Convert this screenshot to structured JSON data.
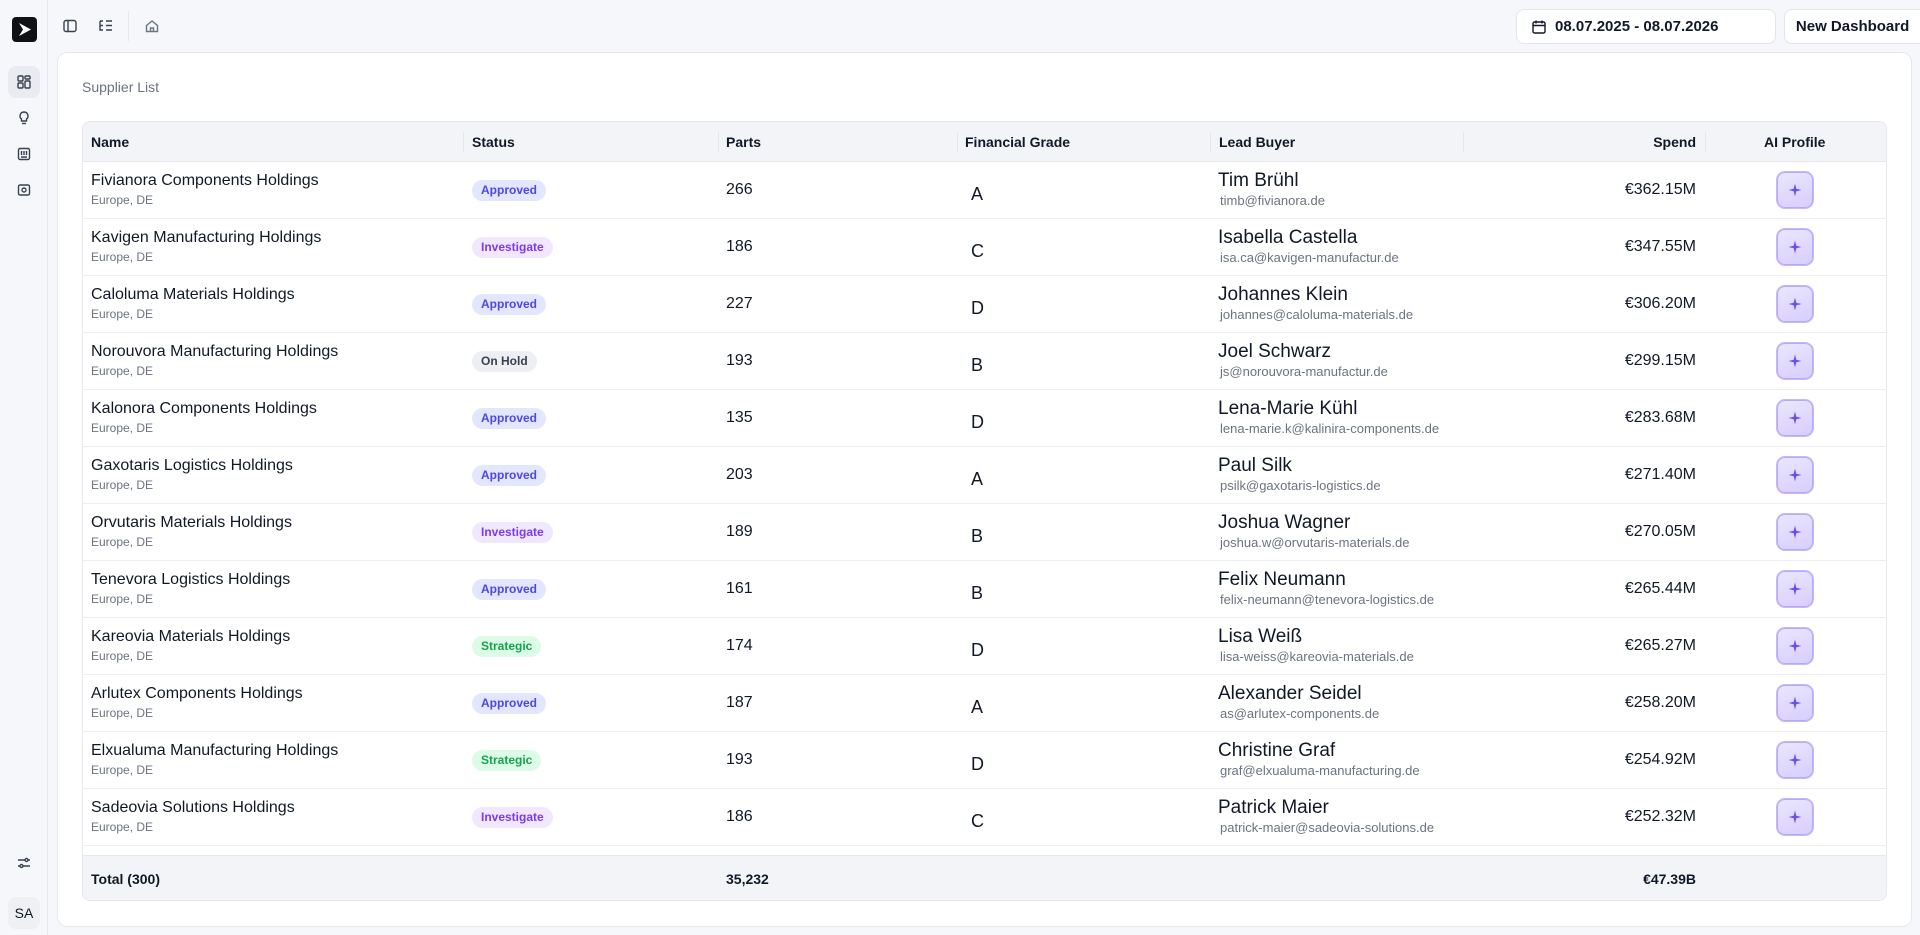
{
  "app": {
    "avatar_initials": "SA",
    "colors": {
      "accent": "#6d4cf3",
      "approved_bg": "#e3e6ff",
      "approved_fg": "#4f46e5",
      "investigate_bg": "#f1e8ff",
      "investigate_fg": "#7c3aed",
      "onhold_bg": "#eeeff2",
      "onhold_fg": "#374151",
      "strategic_bg": "#dcfce7",
      "strategic_fg": "#16a34a"
    }
  },
  "sidebar": {
    "items": [
      {
        "name": "dashboard",
        "icon": "layout-grid-icon",
        "active": true
      },
      {
        "name": "insights",
        "icon": "lightbulb-icon",
        "active": false
      },
      {
        "name": "catalog",
        "icon": "panel-icon",
        "active": false
      },
      {
        "name": "suppliers",
        "icon": "scan-icon",
        "active": false
      }
    ],
    "bottom_icon": "sliders-icon"
  },
  "header": {
    "date_range": "08.07.2025 - 08.07.2026",
    "new_dashboard_label": "New Dashboard"
  },
  "panel": {
    "title": "Supplier List"
  },
  "table": {
    "columns": {
      "name": "Name",
      "status": "Status",
      "parts": "Parts",
      "financial_grade": "Financial Grade",
      "lead_buyer": "Lead Buyer",
      "spend": "Spend",
      "ai_profile": "AI Profile"
    },
    "rows": [
      {
        "name": "Fivianora Components Holdings",
        "region": "Europe, DE",
        "status": "Approved",
        "status_type": "approved",
        "parts": "266",
        "grade": "A",
        "buyer": "Tim Brühl",
        "email": "timb@fivianora.de",
        "spend": "€362.15M"
      },
      {
        "name": "Kavigen Manufacturing Holdings",
        "region": "Europe, DE",
        "status": "Investigate",
        "status_type": "investigate",
        "parts": "186",
        "grade": "C",
        "buyer": "Isabella Castella",
        "email": "isa.ca@kavigen-manufactur.de",
        "spend": "€347.55M"
      },
      {
        "name": "Caloluma Materials Holdings",
        "region": "Europe, DE",
        "status": "Approved",
        "status_type": "approved",
        "parts": "227",
        "grade": "D",
        "buyer": "Johannes Klein",
        "email": "johannes@caloluma-materials.de",
        "spend": "€306.20M"
      },
      {
        "name": "Norouvora Manufacturing Holdings",
        "region": "Europe, DE",
        "status": "On Hold",
        "status_type": "onhold",
        "parts": "193",
        "grade": "B",
        "buyer": "Joel Schwarz",
        "email": "js@norouvora-manufactur.de",
        "spend": "€299.15M"
      },
      {
        "name": "Kalonora Components Holdings",
        "region": "Europe, DE",
        "status": "Approved",
        "status_type": "approved",
        "parts": "135",
        "grade": "D",
        "buyer": "Lena-Marie Kühl",
        "email": "lena-marie.k@kalinira-components.de",
        "spend": "€283.68M"
      },
      {
        "name": "Gaxotaris Logistics Holdings",
        "region": "Europe, DE",
        "status": "Approved",
        "status_type": "approved",
        "parts": "203",
        "grade": "A",
        "buyer": "Paul Silk",
        "email": "psilk@gaxotaris-logistics.de",
        "spend": "€271.40M"
      },
      {
        "name": "Orvutaris Materials Holdings",
        "region": "Europe, DE",
        "status": "Investigate",
        "status_type": "investigate",
        "parts": "189",
        "grade": "B",
        "buyer": "Joshua Wagner",
        "email": "joshua.w@orvutaris-materials.de",
        "spend": "€270.05M"
      },
      {
        "name": "Tenevora Logistics Holdings",
        "region": "Europe, DE",
        "status": "Approved",
        "status_type": "approved",
        "parts": "161",
        "grade": "B",
        "buyer": "Felix Neumann",
        "email": "felix-neumann@tenevora-logistics.de",
        "spend": "€265.44M"
      },
      {
        "name": "Kareovia Materials Holdings",
        "region": "Europe, DE",
        "status": "Strategic",
        "status_type": "strategic",
        "parts": "174",
        "grade": "D",
        "buyer": "Lisa Weiß",
        "email": "lisa-weiss@kareovia-materials.de",
        "spend": "€265.27M"
      },
      {
        "name": "Arlutex Components Holdings",
        "region": "Europe, DE",
        "status": "Approved",
        "status_type": "approved",
        "parts": "187",
        "grade": "A",
        "buyer": "Alexander Seidel",
        "email": "as@arlutex-components.de",
        "spend": "€258.20M"
      },
      {
        "name": "Elxualuma Manufacturing Holdings",
        "region": "Europe, DE",
        "status": "Strategic",
        "status_type": "strategic",
        "parts": "193",
        "grade": "D",
        "buyer": "Christine Graf",
        "email": "graf@elxualuma-manufacturing.de",
        "spend": "€254.92M"
      },
      {
        "name": "Sadeovia Solutions Holdings",
        "region": "Europe, DE",
        "status": "Investigate",
        "status_type": "investigate",
        "parts": "186",
        "grade": "C",
        "buyer": "Patrick Maier",
        "email": "patrick-maier@sadeovia-solutions.de",
        "spend": "€252.32M"
      }
    ],
    "footer": {
      "total_label": "Total (300)",
      "parts_total": "35,232",
      "spend_total": "€47.39B"
    }
  }
}
